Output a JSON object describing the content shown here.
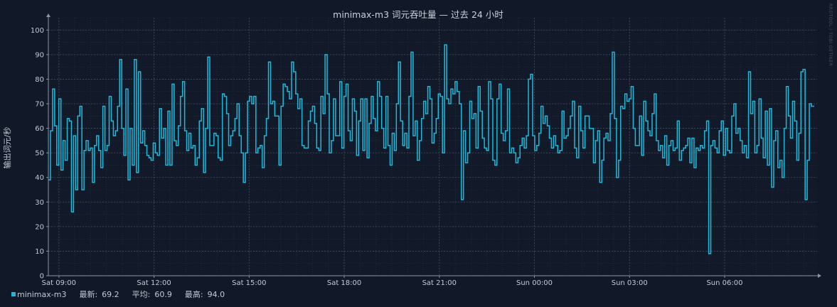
{
  "chart_data": {
    "type": "line",
    "title": "minimax-m3 词元吞吐量 — 过去 24 小时",
    "ylabel": "输出词元/秒",
    "xlabel": "",
    "ylim": [
      0,
      105
    ],
    "yticks": [
      0,
      10,
      20,
      30,
      40,
      50,
      60,
      70,
      80,
      90,
      100
    ],
    "x_start": "Sat 08:40",
    "x_end": "Sun 08:55",
    "xticks": [
      {
        "time": "Sat 09:00",
        "label": "Sat 09:00"
      },
      {
        "time": "Sat 12:00",
        "label": "Sat 12:00"
      },
      {
        "time": "Sat 15:00",
        "label": "Sat 15:00"
      },
      {
        "time": "Sat 18:00",
        "label": "Sat 18:00"
      },
      {
        "time": "Sat 21:00",
        "label": "Sat 21:00"
      },
      {
        "time": "Sun 00:00",
        "label": "Sun 00:00"
      },
      {
        "time": "Sun 03:00",
        "label": "Sun 03:00"
      },
      {
        "time": "Sun 06:00",
        "label": "Sun 06:00"
      }
    ],
    "grid": true,
    "line_style": "step",
    "series": [
      {
        "name": "minimax-m3",
        "color": "#1fb8d9",
        "values": [
          39,
          59,
          76,
          61,
          45,
          72,
          43,
          55,
          47,
          64,
          63,
          26,
          57,
          35,
          65,
          69,
          35,
          51,
          55,
          51,
          52,
          38,
          53,
          57,
          51,
          44,
          69,
          51,
          53,
          73,
          63,
          57,
          59,
          69,
          88,
          60,
          49,
          76,
          39,
          60,
          45,
          88,
          42,
          83,
          54,
          59,
          53,
          49,
          48,
          47,
          54,
          50,
          49,
          68,
          56,
          60,
          45,
          67,
          45,
          78,
          55,
          53,
          61,
          73,
          79,
          59,
          51,
          58,
          52,
          53,
          45,
          48,
          63,
          68,
          42,
          60,
          89,
          53,
          53,
          58,
          57,
          48,
          47,
          74,
          73,
          66,
          53,
          57,
          59,
          64,
          70,
          57,
          50,
          38,
          50,
          71,
          73,
          70,
          73,
          50,
          52,
          53,
          44,
          57,
          64,
          87,
          70,
          71,
          65,
          65,
          45,
          69,
          78,
          77,
          75,
          72,
          87,
          83,
          74,
          68,
          72,
          53,
          52,
          52,
          63,
          67,
          69,
          62,
          52,
          51,
          73,
          66,
          90,
          74,
          50,
          55,
          72,
          57,
          57,
          79,
          52,
          73,
          78,
          59,
          55,
          72,
          67,
          49,
          63,
          72,
          51,
          72,
          48,
          62,
          73,
          64,
          59,
          79,
          73,
          60,
          52,
          73,
          53,
          45,
          58,
          51,
          70,
          87,
          63,
          53,
          58,
          52,
          73,
          91,
          57,
          63,
          47,
          55,
          64,
          71,
          66,
          77,
          72,
          54,
          58,
          64,
          74,
          73,
          50,
          94,
          72,
          70,
          76,
          74,
          79,
          75,
          70,
          31,
          59,
          46,
          50,
          71,
          64,
          66,
          52,
          77,
          67,
          56,
          52,
          51,
          79,
          72,
          47,
          45,
          72,
          78,
          58,
          55,
          59,
          76,
          50,
          52,
          50,
          46,
          48,
          53,
          56,
          52,
          57,
          80,
          82,
          57,
          51,
          53,
          58,
          69,
          62,
          65,
          61,
          56,
          52,
          57,
          53,
          50,
          51,
          67,
          56,
          57,
          60,
          65,
          71,
          52,
          48,
          69,
          59,
          52,
          65,
          65,
          60,
          60,
          46,
          55,
          59,
          38,
          47,
          56,
          58,
          55,
          66,
          91,
          64,
          40,
          47,
          69,
          68,
          74,
          71,
          72,
          77,
          60,
          53,
          53,
          65,
          49,
          71,
          63,
          59,
          57,
          66,
          74,
          55,
          51,
          53,
          48,
          57,
          45,
          53,
          55,
          51,
          52,
          63,
          47,
          51,
          52,
          53,
          56,
          46,
          56,
          44,
          52,
          51,
          53,
          52,
          59,
          63,
          9,
          53,
          55,
          52,
          50,
          59,
          63,
          49,
          60,
          51,
          50,
          65,
          70,
          58,
          60,
          55,
          50,
          53,
          48,
          83,
          66,
          71,
          50,
          53,
          72,
          56,
          48,
          67,
          45,
          68,
          36,
          55,
          59,
          44,
          47,
          40,
          60,
          77,
          65,
          56,
          71,
          63,
          47,
          58,
          83,
          84,
          31,
          47,
          70,
          69
        ]
      }
    ],
    "legend": {
      "series_label": "minimax-m3",
      "latest_label": "最新:",
      "latest_value": "69.2",
      "avg_label": "平均:",
      "avg_value": "60.9",
      "max_label": "最高:",
      "max_value": "94.0"
    },
    "watermark": "RRDTOOL / TOBI OETIKER"
  }
}
